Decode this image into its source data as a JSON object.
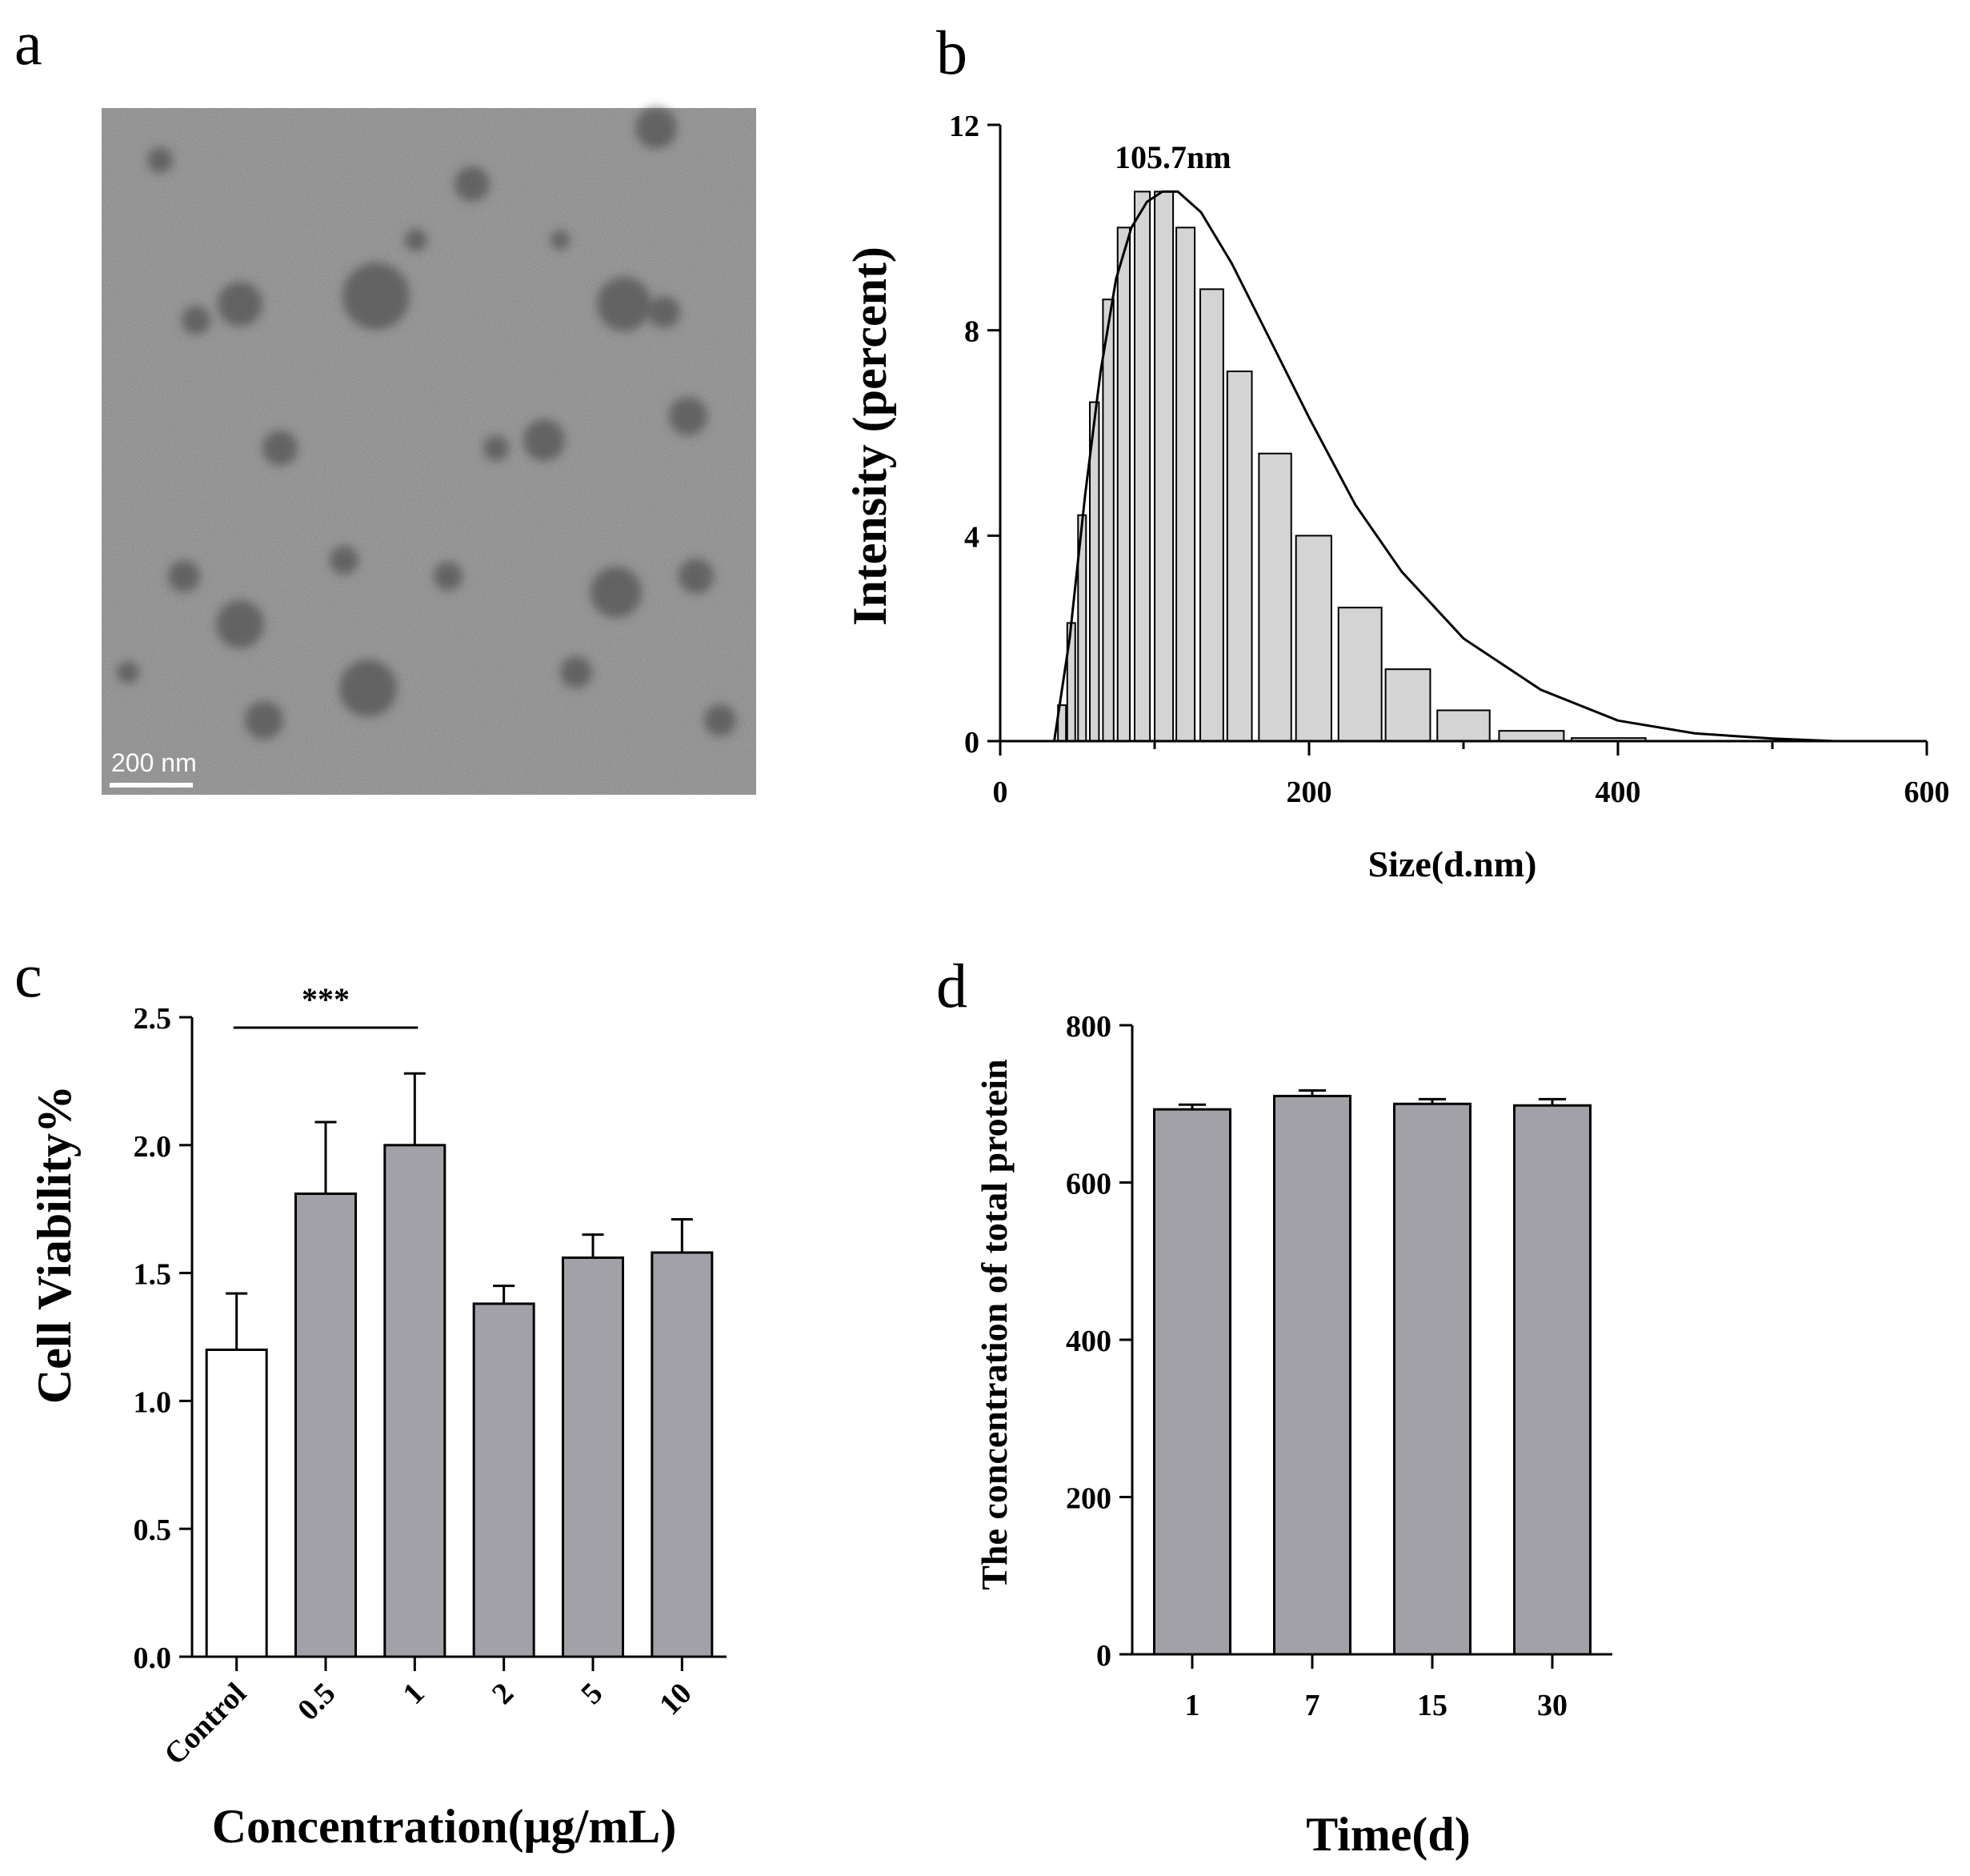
{
  "panels": {
    "a": {
      "letter": "a",
      "scale_bar_label": "200 nm"
    },
    "b": {
      "letter": "b",
      "peak_label": "105.7nm"
    },
    "c": {
      "letter": "c",
      "significance": "***"
    },
    "d": {
      "letter": "d"
    }
  },
  "chart_data": [
    {
      "panel": "b",
      "type": "bar",
      "title": "",
      "xlabel": "Size(d.nm)",
      "ylabel": "Intensity (percent)",
      "xlim": [
        0,
        600
      ],
      "ylim": [
        0,
        12
      ],
      "xticks": [
        0,
        200,
        400,
        600
      ],
      "yticks": [
        0,
        4,
        8,
        12
      ],
      "bars": [
        {
          "x": 40,
          "y": 0.7
        },
        {
          "x": 46,
          "y": 2.3
        },
        {
          "x": 53,
          "y": 4.4
        },
        {
          "x": 61,
          "y": 6.6
        },
        {
          "x": 70,
          "y": 8.6
        },
        {
          "x": 80,
          "y": 10.0
        },
        {
          "x": 92,
          "y": 10.7
        },
        {
          "x": 106,
          "y": 10.7
        },
        {
          "x": 120,
          "y": 10.0
        },
        {
          "x": 137,
          "y": 8.8
        },
        {
          "x": 155,
          "y": 7.2
        },
        {
          "x": 178,
          "y": 5.6
        },
        {
          "x": 203,
          "y": 4.0
        },
        {
          "x": 233,
          "y": 2.6
        },
        {
          "x": 264,
          "y": 1.4
        },
        {
          "x": 300,
          "y": 0.6
        },
        {
          "x": 344,
          "y": 0.2
        },
        {
          "x": 394,
          "y": 0.06
        }
      ],
      "bar_color": "#d4d4d4",
      "fit_curve": {
        "x": [
          35,
          45,
          55,
          65,
          75,
          85,
          95,
          105,
          115,
          130,
          150,
          175,
          200,
          230,
          260,
          300,
          350,
          400,
          450,
          500,
          540
        ],
        "y": [
          0.0,
          2.0,
          4.8,
          7.2,
          9.0,
          10.0,
          10.5,
          10.7,
          10.7,
          10.3,
          9.3,
          7.8,
          6.3,
          4.6,
          3.3,
          2.0,
          1.0,
          0.4,
          0.15,
          0.05,
          0.0
        ]
      }
    },
    {
      "panel": "c",
      "type": "bar",
      "title": "",
      "xlabel": "Concentration(μg/mL)",
      "ylabel": "Cell Viability%",
      "categories": [
        "Control",
        "0.5",
        "1",
        "2",
        "5",
        "10"
      ],
      "values": [
        1.2,
        1.81,
        2.0,
        1.38,
        1.56,
        1.58
      ],
      "errors": [
        0.22,
        0.28,
        0.28,
        0.07,
        0.09,
        0.13
      ],
      "colors": [
        "#ffffff",
        "#a2a1a8",
        "#a2a1a8",
        "#a2a1a8",
        "#a2a1a8",
        "#a2a1a8"
      ],
      "ylim": [
        0,
        2.5
      ],
      "yticks": [
        "0.0",
        "0.5",
        "1.0",
        "1.5",
        "2.0",
        "2.5"
      ],
      "significance": {
        "from": 0,
        "to": 2,
        "label": "***"
      }
    },
    {
      "panel": "d",
      "type": "bar",
      "title": "",
      "xlabel": "Time(d)",
      "ylabel": "The concentration of total protein",
      "categories": [
        "1",
        "7",
        "15",
        "30"
      ],
      "values": [
        693,
        710,
        700,
        698
      ],
      "errors": [
        6,
        7,
        6,
        8
      ],
      "colors": [
        "#a2a1a8",
        "#a2a1a8",
        "#a2a1a8",
        "#a2a1a8"
      ],
      "ylim": [
        0,
        800
      ],
      "yticks": [
        "0",
        "200",
        "400",
        "600",
        "800"
      ]
    }
  ]
}
